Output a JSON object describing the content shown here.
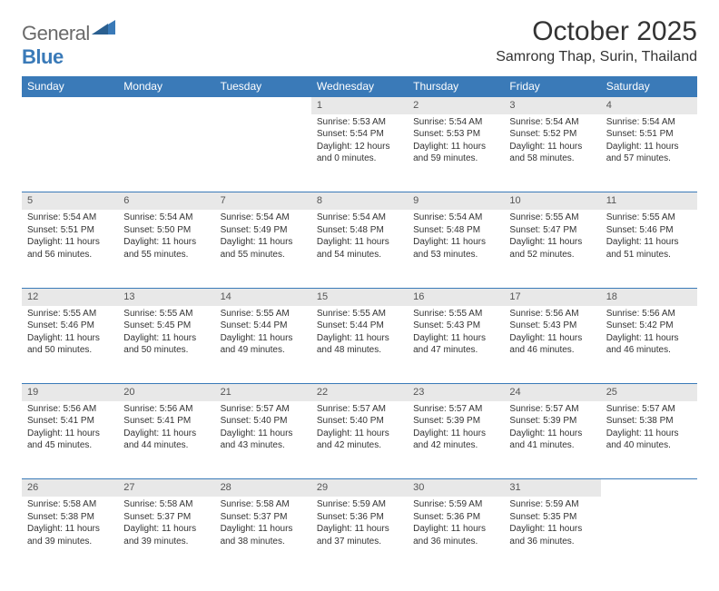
{
  "logo": {
    "word1": "General",
    "word2": "Blue"
  },
  "title": "October 2025",
  "location": "Samrong Thap, Surin, Thailand",
  "colors": {
    "header_bg": "#3a7ab8",
    "daynum_bg": "#e8e8e8",
    "page_bg": "#ffffff"
  },
  "day_headers": [
    "Sunday",
    "Monday",
    "Tuesday",
    "Wednesday",
    "Thursday",
    "Friday",
    "Saturday"
  ],
  "weeks": [
    [
      null,
      null,
      null,
      {
        "n": "1",
        "sunrise": "5:53 AM",
        "sunset": "5:54 PM",
        "daylight": "12 hours and 0 minutes."
      },
      {
        "n": "2",
        "sunrise": "5:54 AM",
        "sunset": "5:53 PM",
        "daylight": "11 hours and 59 minutes."
      },
      {
        "n": "3",
        "sunrise": "5:54 AM",
        "sunset": "5:52 PM",
        "daylight": "11 hours and 58 minutes."
      },
      {
        "n": "4",
        "sunrise": "5:54 AM",
        "sunset": "5:51 PM",
        "daylight": "11 hours and 57 minutes."
      }
    ],
    [
      {
        "n": "5",
        "sunrise": "5:54 AM",
        "sunset": "5:51 PM",
        "daylight": "11 hours and 56 minutes."
      },
      {
        "n": "6",
        "sunrise": "5:54 AM",
        "sunset": "5:50 PM",
        "daylight": "11 hours and 55 minutes."
      },
      {
        "n": "7",
        "sunrise": "5:54 AM",
        "sunset": "5:49 PM",
        "daylight": "11 hours and 55 minutes."
      },
      {
        "n": "8",
        "sunrise": "5:54 AM",
        "sunset": "5:48 PM",
        "daylight": "11 hours and 54 minutes."
      },
      {
        "n": "9",
        "sunrise": "5:54 AM",
        "sunset": "5:48 PM",
        "daylight": "11 hours and 53 minutes."
      },
      {
        "n": "10",
        "sunrise": "5:55 AM",
        "sunset": "5:47 PM",
        "daylight": "11 hours and 52 minutes."
      },
      {
        "n": "11",
        "sunrise": "5:55 AM",
        "sunset": "5:46 PM",
        "daylight": "11 hours and 51 minutes."
      }
    ],
    [
      {
        "n": "12",
        "sunrise": "5:55 AM",
        "sunset": "5:46 PM",
        "daylight": "11 hours and 50 minutes."
      },
      {
        "n": "13",
        "sunrise": "5:55 AM",
        "sunset": "5:45 PM",
        "daylight": "11 hours and 50 minutes."
      },
      {
        "n": "14",
        "sunrise": "5:55 AM",
        "sunset": "5:44 PM",
        "daylight": "11 hours and 49 minutes."
      },
      {
        "n": "15",
        "sunrise": "5:55 AM",
        "sunset": "5:44 PM",
        "daylight": "11 hours and 48 minutes."
      },
      {
        "n": "16",
        "sunrise": "5:55 AM",
        "sunset": "5:43 PM",
        "daylight": "11 hours and 47 minutes."
      },
      {
        "n": "17",
        "sunrise": "5:56 AM",
        "sunset": "5:43 PM",
        "daylight": "11 hours and 46 minutes."
      },
      {
        "n": "18",
        "sunrise": "5:56 AM",
        "sunset": "5:42 PM",
        "daylight": "11 hours and 46 minutes."
      }
    ],
    [
      {
        "n": "19",
        "sunrise": "5:56 AM",
        "sunset": "5:41 PM",
        "daylight": "11 hours and 45 minutes."
      },
      {
        "n": "20",
        "sunrise": "5:56 AM",
        "sunset": "5:41 PM",
        "daylight": "11 hours and 44 minutes."
      },
      {
        "n": "21",
        "sunrise": "5:57 AM",
        "sunset": "5:40 PM",
        "daylight": "11 hours and 43 minutes."
      },
      {
        "n": "22",
        "sunrise": "5:57 AM",
        "sunset": "5:40 PM",
        "daylight": "11 hours and 42 minutes."
      },
      {
        "n": "23",
        "sunrise": "5:57 AM",
        "sunset": "5:39 PM",
        "daylight": "11 hours and 42 minutes."
      },
      {
        "n": "24",
        "sunrise": "5:57 AM",
        "sunset": "5:39 PM",
        "daylight": "11 hours and 41 minutes."
      },
      {
        "n": "25",
        "sunrise": "5:57 AM",
        "sunset": "5:38 PM",
        "daylight": "11 hours and 40 minutes."
      }
    ],
    [
      {
        "n": "26",
        "sunrise": "5:58 AM",
        "sunset": "5:38 PM",
        "daylight": "11 hours and 39 minutes."
      },
      {
        "n": "27",
        "sunrise": "5:58 AM",
        "sunset": "5:37 PM",
        "daylight": "11 hours and 39 minutes."
      },
      {
        "n": "28",
        "sunrise": "5:58 AM",
        "sunset": "5:37 PM",
        "daylight": "11 hours and 38 minutes."
      },
      {
        "n": "29",
        "sunrise": "5:59 AM",
        "sunset": "5:36 PM",
        "daylight": "11 hours and 37 minutes."
      },
      {
        "n": "30",
        "sunrise": "5:59 AM",
        "sunset": "5:36 PM",
        "daylight": "11 hours and 36 minutes."
      },
      {
        "n": "31",
        "sunrise": "5:59 AM",
        "sunset": "5:35 PM",
        "daylight": "11 hours and 36 minutes."
      },
      null
    ]
  ],
  "labels": {
    "sunrise": "Sunrise:",
    "sunset": "Sunset:",
    "daylight": "Daylight:"
  }
}
